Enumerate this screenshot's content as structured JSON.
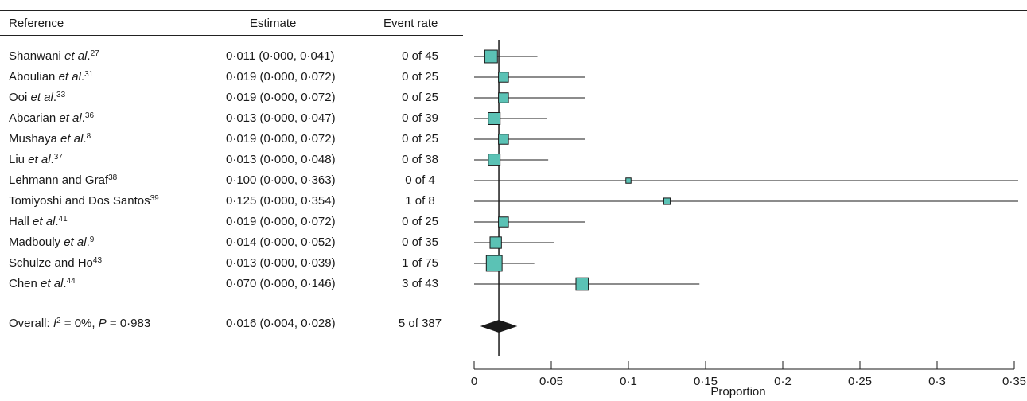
{
  "table": {
    "headers": {
      "reference": "Reference",
      "estimate": "Estimate",
      "event_rate": "Event rate"
    },
    "rows": [
      {
        "ref_pre": "Shanwani ",
        "ref_it": "et al",
        "ref_post": ".",
        "ref_sup": "27",
        "estimate": "0·011 (0·000, 0·041)",
        "events": "0 of 45"
      },
      {
        "ref_pre": "Aboulian ",
        "ref_it": "et al",
        "ref_post": ".",
        "ref_sup": "31",
        "estimate": "0·019 (0·000, 0·072)",
        "events": "0 of 25"
      },
      {
        "ref_pre": "Ooi ",
        "ref_it": "et al",
        "ref_post": ".",
        "ref_sup": "33",
        "estimate": "0·019 (0·000, 0·072)",
        "events": "0 of 25"
      },
      {
        "ref_pre": "Abcarian ",
        "ref_it": "et al",
        "ref_post": ".",
        "ref_sup": "36",
        "estimate": "0·013 (0·000, 0·047)",
        "events": "0 of 39"
      },
      {
        "ref_pre": "Mushaya ",
        "ref_it": "et al",
        "ref_post": ".",
        "ref_sup": "8",
        "estimate": "0·019 (0·000, 0·072)",
        "events": "0 of 25"
      },
      {
        "ref_pre": "Liu ",
        "ref_it": "et al",
        "ref_post": ".",
        "ref_sup": "37",
        "estimate": "0·013 (0·000, 0·048)",
        "events": "0 of 38"
      },
      {
        "ref_pre": "Lehmann and Graf",
        "ref_it": "",
        "ref_post": "",
        "ref_sup": "38",
        "estimate": "0·100 (0·000, 0·363)",
        "events": "0 of 4"
      },
      {
        "ref_pre": "Tomiyoshi and Dos Santos",
        "ref_it": "",
        "ref_post": "",
        "ref_sup": "39",
        "estimate": "0·125 (0·000, 0·354)",
        "events": "1 of 8"
      },
      {
        "ref_pre": "Hall ",
        "ref_it": "et al",
        "ref_post": ".",
        "ref_sup": "41",
        "estimate": "0·019 (0·000, 0·072)",
        "events": "0 of 25"
      },
      {
        "ref_pre": "Madbouly ",
        "ref_it": "et al",
        "ref_post": ".",
        "ref_sup": "9",
        "estimate": "0·014 (0·000, 0·052)",
        "events": "0 of 35"
      },
      {
        "ref_pre": "Schulze and Ho",
        "ref_it": "",
        "ref_post": "",
        "ref_sup": "43",
        "estimate": "0·013 (0·000, 0·039)",
        "events": "1 of 75"
      },
      {
        "ref_pre": "Chen ",
        "ref_it": "et al",
        "ref_post": ".",
        "ref_sup": "44",
        "estimate": "0·070 (0·000, 0·146)",
        "events": "3 of 43"
      }
    ],
    "overall": {
      "p1": "Overall: ",
      "i": "I",
      "sup": "2",
      "p2": " = 0%, ",
      "p": "P",
      "p3": " = 0·983",
      "estimate": "0·016 (0·004, 0·028)",
      "events": "5 of 387"
    }
  },
  "chart_data": {
    "type": "forest",
    "xlabel": "Proportion",
    "xlim": [
      0,
      0.35
    ],
    "ticks": [
      0,
      0.05,
      0.1,
      0.15,
      0.2,
      0.25,
      0.3,
      0.35
    ],
    "tick_labels": [
      "0",
      "0·05",
      "0·1",
      "0·15",
      "0·2",
      "0·25",
      "0·3",
      "0·35"
    ],
    "reference_line": 0.016,
    "points": [
      {
        "est": 0.011,
        "lo": 0.0,
        "hi": 0.041,
        "weight": 45
      },
      {
        "est": 0.019,
        "lo": 0.0,
        "hi": 0.072,
        "weight": 25
      },
      {
        "est": 0.019,
        "lo": 0.0,
        "hi": 0.072,
        "weight": 25
      },
      {
        "est": 0.013,
        "lo": 0.0,
        "hi": 0.047,
        "weight": 39
      },
      {
        "est": 0.019,
        "lo": 0.0,
        "hi": 0.072,
        "weight": 25
      },
      {
        "est": 0.013,
        "lo": 0.0,
        "hi": 0.048,
        "weight": 38
      },
      {
        "est": 0.1,
        "lo": 0.0,
        "hi": 0.363,
        "weight": 4
      },
      {
        "est": 0.125,
        "lo": 0.0,
        "hi": 0.354,
        "weight": 8
      },
      {
        "est": 0.019,
        "lo": 0.0,
        "hi": 0.072,
        "weight": 25
      },
      {
        "est": 0.014,
        "lo": 0.0,
        "hi": 0.052,
        "weight": 35
      },
      {
        "est": 0.013,
        "lo": 0.0,
        "hi": 0.039,
        "weight": 75
      },
      {
        "est": 0.07,
        "lo": 0.0,
        "hi": 0.146,
        "weight": 43
      }
    ],
    "overall": {
      "est": 0.016,
      "lo": 0.004,
      "hi": 0.028
    },
    "colors": {
      "box": "#5bc2b5",
      "diamond": "#1a1a1a",
      "line": "#1a1a1a"
    }
  }
}
